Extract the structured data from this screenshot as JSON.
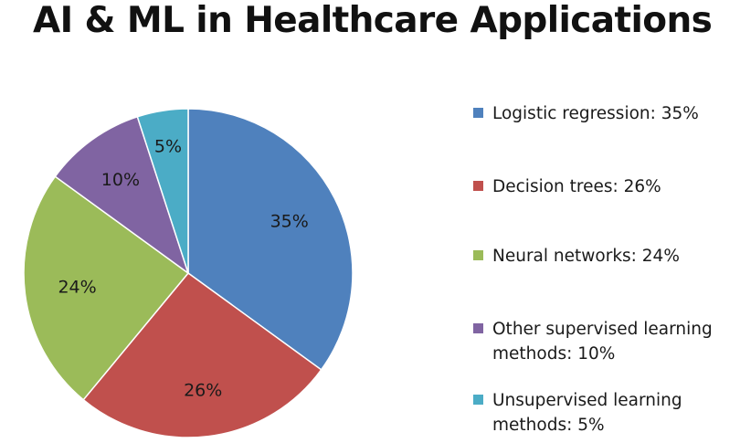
{
  "chart_data": {
    "type": "pie",
    "title": "AI & ML in Healthcare Applications",
    "categories": [
      "Logistic regression: 35%",
      "Decision trees: 26%",
      "Neural networks:  24%",
      "Other supervised learning methods: 10%",
      "Unsupervised learning methods: 5%"
    ],
    "values": [
      35,
      26,
      24,
      10,
      5
    ],
    "data_labels": [
      "35%",
      "26%",
      "24%",
      "10%",
      "5%"
    ],
    "colors": [
      "#4f81bd",
      "#c0504d",
      "#9bbb59",
      "#8064a2",
      "#4bacc6"
    ],
    "legend": "right",
    "start_angle": "top, clockwise"
  }
}
